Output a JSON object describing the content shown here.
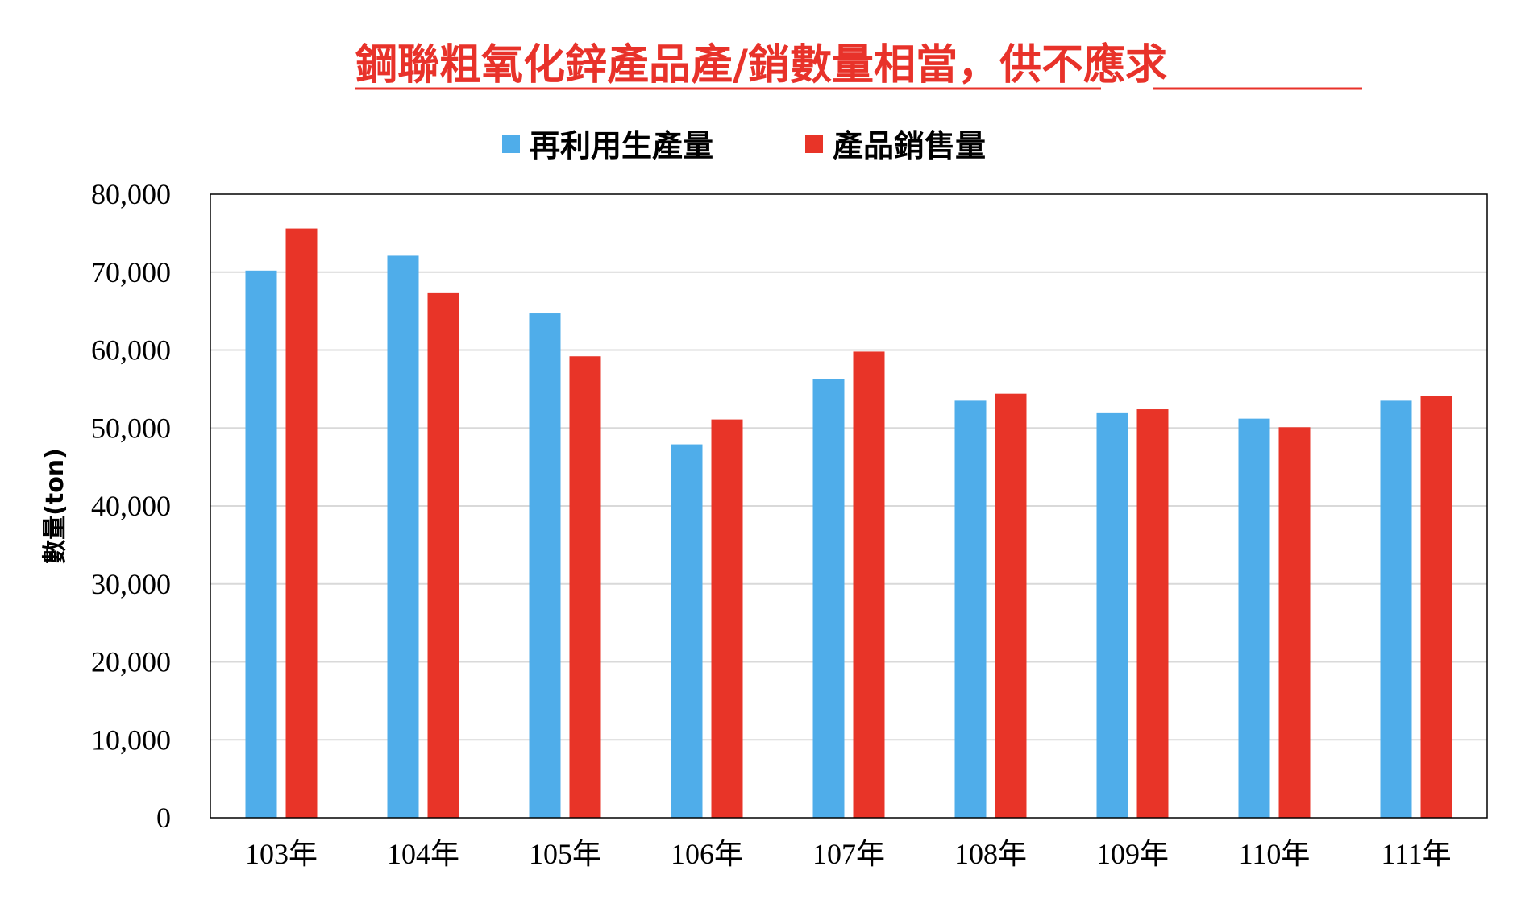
{
  "chart_data": {
    "type": "bar",
    "title_parts": [
      "鋼聯粗氧化鋅產品產/銷數量相當",
      "，",
      "供不應求"
    ],
    "categories": [
      "103年",
      "104年",
      "105年",
      "106年",
      "107年",
      "108年",
      "109年",
      "110年",
      "111年"
    ],
    "series": [
      {
        "name": "再利用生產量",
        "color": "#4fadea",
        "values": [
          70200,
          72100,
          64700,
          47900,
          56300,
          53500,
          51900,
          51200,
          53500
        ]
      },
      {
        "name": "產品銷售量",
        "color": "#e83428",
        "values": [
          75600,
          67300,
          59200,
          51100,
          59800,
          54400,
          52400,
          50100,
          54100
        ]
      }
    ],
    "xlabel": "",
    "ylabel": "數量(ton)",
    "ylim": [
      0,
      80000
    ],
    "yticks": [
      0,
      10000,
      20000,
      30000,
      40000,
      50000,
      60000,
      70000,
      80000
    ],
    "ytick_labels": [
      "0",
      "10,000",
      "20,000",
      "30,000",
      "40,000",
      "50,000",
      "60,000",
      "70,000",
      "80,000"
    ],
    "grid": true,
    "legend_position": "top"
  }
}
